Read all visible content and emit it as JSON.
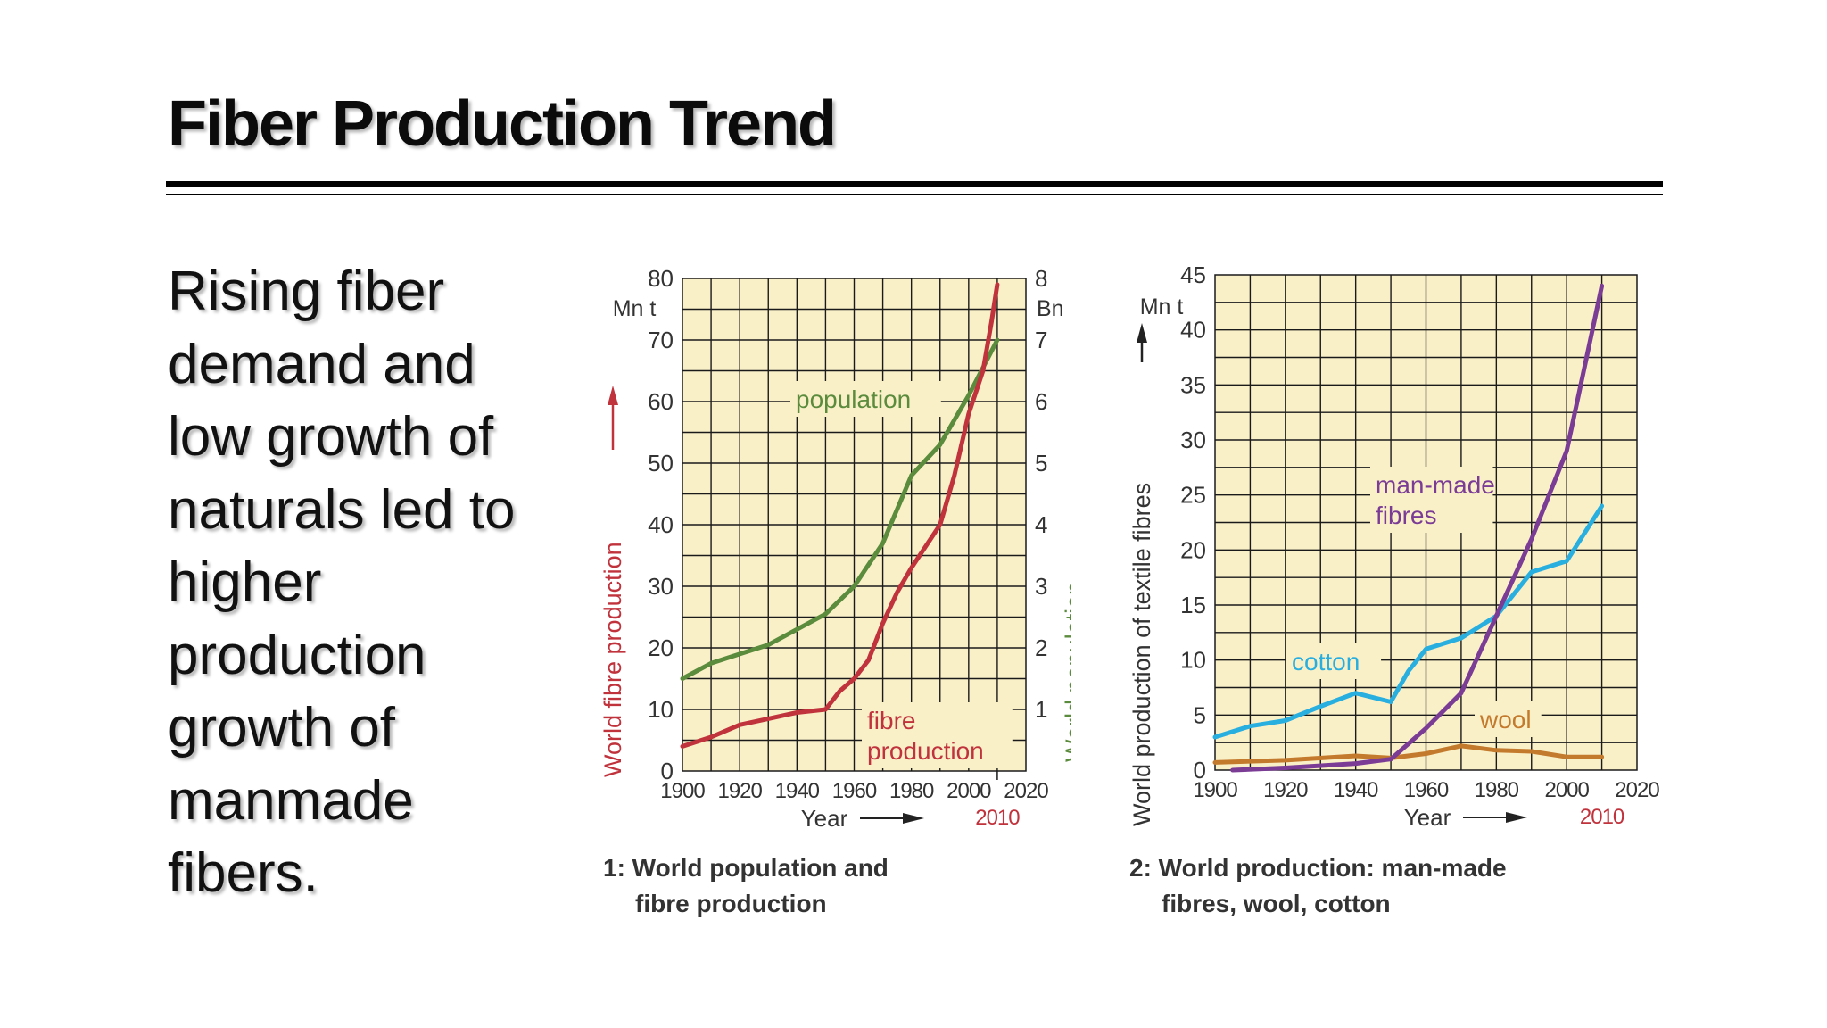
{
  "slide": {
    "title": "Fiber Production Trend",
    "body": "Rising fiber demand and low growth of naturals led to higher production growth of manmade fibers."
  },
  "chart_data": [
    {
      "type": "line",
      "caption_line1": "1: World population and",
      "caption_line2": "fibre production",
      "xlabel": "Year",
      "x_extra_label": "2010",
      "xlim": [
        1900,
        2020
      ],
      "xticks": [
        1900,
        1920,
        1940,
        1960,
        1980,
        2000,
        2020
      ],
      "ylim": [
        0,
        80
      ],
      "yticks": [
        0,
        10,
        20,
        30,
        40,
        50,
        60,
        70,
        80
      ],
      "y_unit": "Mn t",
      "ylabel": "World fibre production",
      "y2lim": [
        0,
        8
      ],
      "y2ticks": [
        1,
        2,
        3,
        4,
        5,
        6,
        7,
        8
      ],
      "y2_unit": "Bn",
      "y2label": "World population",
      "grid": true,
      "colors": {
        "panel": "#faf0c8",
        "grid": "#1a1a1a",
        "population": "#5b8b3c",
        "fibre": "#c0323c",
        "axis_text": "#333333"
      },
      "series": [
        {
          "name": "population",
          "axis": "right",
          "x": [
            1900,
            1910,
            1920,
            1930,
            1940,
            1950,
            1960,
            1970,
            1980,
            1990,
            2000,
            2010
          ],
          "y": [
            1.5,
            1.75,
            1.9,
            2.05,
            2.3,
            2.55,
            3.0,
            3.7,
            4.8,
            5.3,
            6.1,
            7.0
          ]
        },
        {
          "name": "fibre production",
          "label_line1": "fibre",
          "label_line2": "production",
          "axis": "left",
          "x": [
            1900,
            1910,
            1920,
            1930,
            1940,
            1950,
            1955,
            1960,
            1965,
            1970,
            1975,
            1980,
            1990,
            1995,
            2000,
            2005,
            2008,
            2010
          ],
          "y": [
            4,
            5.5,
            7.5,
            8.5,
            9.5,
            10,
            13,
            15,
            18,
            24,
            29,
            33,
            40,
            48,
            58,
            65,
            73,
            79
          ]
        }
      ]
    },
    {
      "type": "line",
      "caption_line1": "2: World production: man-made",
      "caption_line2": "fibres, wool, cotton",
      "xlabel": "Year",
      "x_extra_label": "2010",
      "xlim": [
        1900,
        2020
      ],
      "xticks": [
        1900,
        1920,
        1940,
        1960,
        1980,
        2000,
        2020
      ],
      "ylim": [
        0,
        45
      ],
      "yticks": [
        0,
        5,
        10,
        15,
        20,
        25,
        30,
        35,
        40,
        45
      ],
      "y_unit": "Mn t",
      "ylabel": "World production of textile fibres",
      "grid": true,
      "colors": {
        "panel": "#faf0c8",
        "grid": "#1a1a1a",
        "man_made": "#7b3c96",
        "cotton": "#29aee0",
        "wool": "#c47a2c",
        "axis_text": "#333333"
      },
      "series": [
        {
          "name": "man-made fibres",
          "label_line1": "man-made",
          "label_line2": "fibres",
          "x": [
            1905,
            1920,
            1940,
            1950,
            1960,
            1970,
            1980,
            1990,
            2000,
            2010
          ],
          "y": [
            0,
            0.2,
            0.6,
            1.0,
            3.8,
            7,
            14,
            21,
            29,
            44
          ]
        },
        {
          "name": "cotton",
          "x": [
            1900,
            1910,
            1920,
            1930,
            1940,
            1950,
            1955,
            1960,
            1970,
            1980,
            1985,
            1990,
            2000,
            2010
          ],
          "y": [
            3,
            4,
            4.5,
            5.8,
            7,
            6.2,
            9,
            11,
            12,
            14,
            16,
            18,
            19,
            24
          ]
        },
        {
          "name": "wool",
          "x": [
            1900,
            1920,
            1940,
            1950,
            1960,
            1970,
            1980,
            1990,
            2000,
            2010
          ],
          "y": [
            0.7,
            0.9,
            1.3,
            1.1,
            1.5,
            2.2,
            1.8,
            1.7,
            1.2,
            1.2
          ]
        }
      ]
    }
  ]
}
